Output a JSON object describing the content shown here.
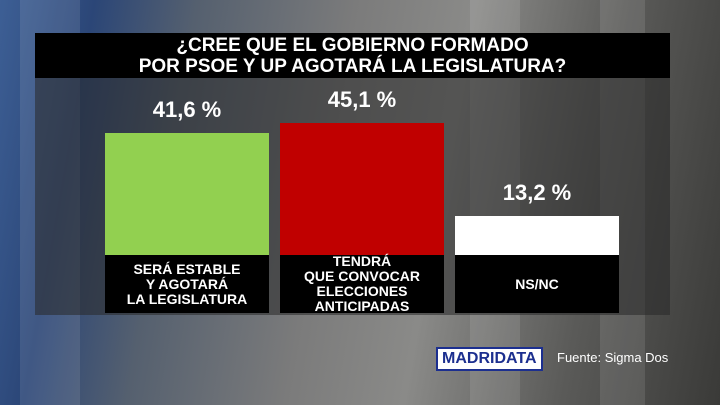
{
  "chart_data": {
    "type": "bar",
    "title": "¿CREE QUE EL GOBIERNO FORMADO\nPOR PSOE Y UP AGOTARÁ LA LEGISLATURA?",
    "categories": [
      "SERÁ ESTABLE\nY AGOTARÁ\nLA LEGISLATURA",
      "TENDRÁ\nQUE CONVOCAR\nELECCIONES\nANTICIPADAS",
      "NS/NC"
    ],
    "values": [
      41.6,
      45.1,
      13.2
    ],
    "value_labels": [
      "41,6 %",
      "45,1 %",
      "13,2 %"
    ],
    "colors": [
      "#92d050",
      "#c00000",
      "#ffffff"
    ],
    "logo": "MADRIDATA",
    "source": "Fuente: Sigma Dos"
  }
}
